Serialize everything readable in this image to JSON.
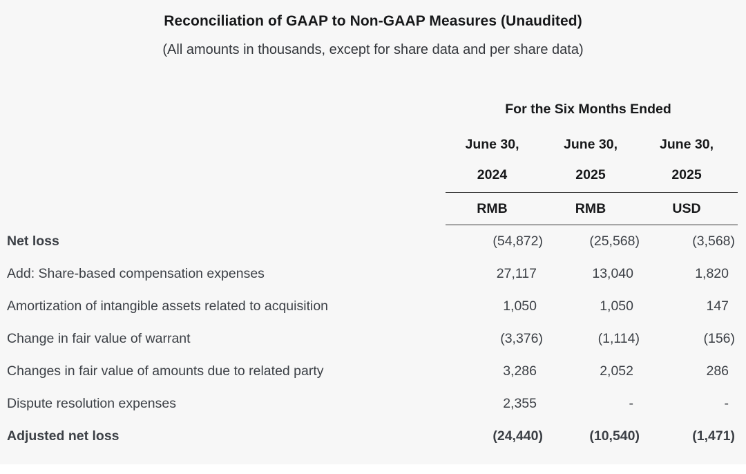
{
  "theme": {
    "background": "#f7f7f7",
    "rule": "#303030",
    "text": "#3c4046",
    "text_bold": "#17181a"
  },
  "header": {
    "title": "Reconciliation of GAAP to Non-GAAP Measures (Unaudited)",
    "subtitle": "(All amounts in thousands, except for share data and per share data)"
  },
  "table": {
    "group_header": "For the Six Months Ended",
    "columns": [
      {
        "period": "June 30,",
        "year": "2024",
        "currency": "RMB"
      },
      {
        "period": "June 30,",
        "year": "2025",
        "currency": "RMB"
      },
      {
        "period": "June 30,",
        "year": "2025",
        "currency": "USD"
      }
    ],
    "rows": [
      {
        "label": "Net loss",
        "values": [
          "(54,872)",
          "(25,568)",
          "(3,568)"
        ],
        "bold_label": true,
        "bold_values": false
      },
      {
        "label": "Add: Share-based compensation expenses",
        "values": [
          "27,117",
          "13,040",
          "1,820"
        ],
        "bold_label": false,
        "bold_values": false
      },
      {
        "label": "Amortization of intangible assets related to acquisition",
        "values": [
          "1,050",
          "1,050",
          "147"
        ],
        "bold_label": false,
        "bold_values": false
      },
      {
        "label": "Change in fair value of warrant",
        "values": [
          "(3,376)",
          "(1,114)",
          "(156)"
        ],
        "bold_label": false,
        "bold_values": false
      },
      {
        "label": "Changes in fair value of amounts due to related party",
        "values": [
          "3,286",
          "2,052",
          "286"
        ],
        "bold_label": false,
        "bold_values": false
      },
      {
        "label": "Dispute resolution expenses",
        "values": [
          "2,355",
          "-",
          "-"
        ],
        "bold_label": false,
        "bold_values": false
      },
      {
        "label": "Adjusted net loss",
        "values": [
          "(24,440)",
          "(10,540)",
          "(1,471)"
        ],
        "bold_label": true,
        "bold_values": true
      }
    ]
  }
}
